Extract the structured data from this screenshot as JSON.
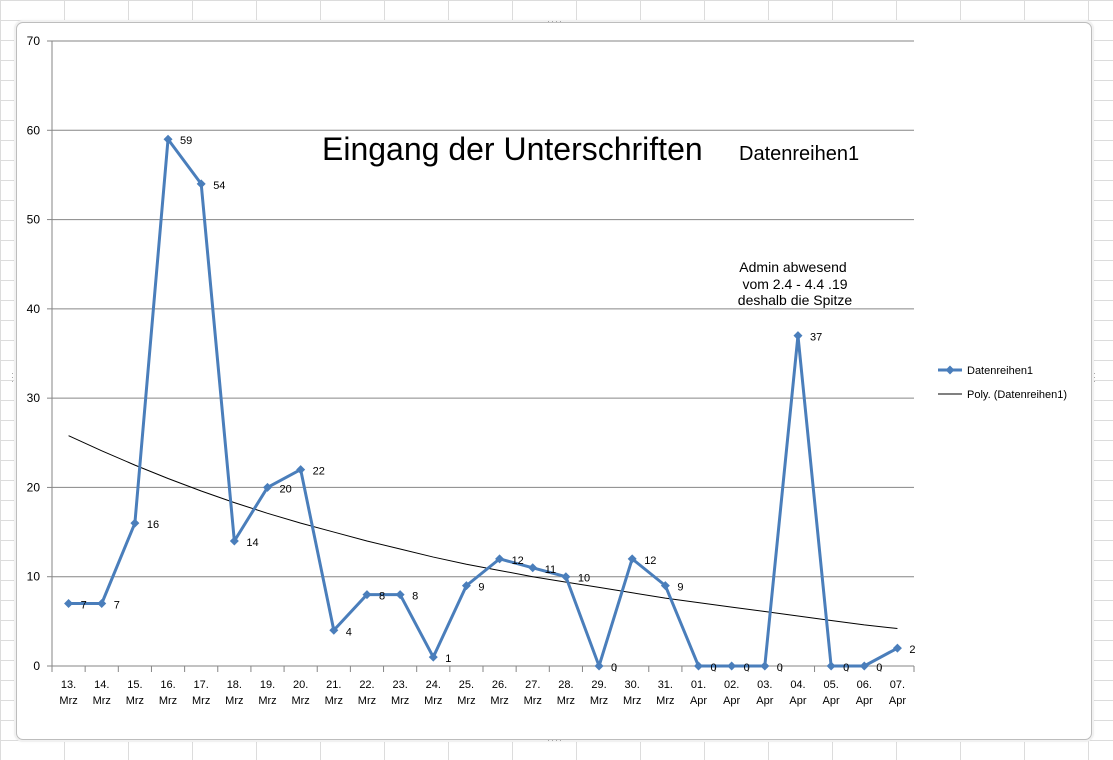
{
  "chart_data": {
    "type": "line",
    "title": "Eingang der Unterschriften",
    "title_series_label": "Datenreihen1",
    "annotation_lines": [
      "Admin abwesend",
      "vom 2.4 - 4.4 .19",
      "deshalb die Spitze"
    ],
    "categories": [
      [
        "13.",
        "Mrz"
      ],
      [
        "14.",
        "Mrz"
      ],
      [
        "15.",
        "Mrz"
      ],
      [
        "16.",
        "Mrz"
      ],
      [
        "17.",
        "Mrz"
      ],
      [
        "18.",
        "Mrz"
      ],
      [
        "19.",
        "Mrz"
      ],
      [
        "20.",
        "Mrz"
      ],
      [
        "21.",
        "Mrz"
      ],
      [
        "22.",
        "Mrz"
      ],
      [
        "23.",
        "Mrz"
      ],
      [
        "24.",
        "Mrz"
      ],
      [
        "25.",
        "Mrz"
      ],
      [
        "26.",
        "Mrz"
      ],
      [
        "27.",
        "Mrz"
      ],
      [
        "28.",
        "Mrz"
      ],
      [
        "29.",
        "Mrz"
      ],
      [
        "30.",
        "Mrz"
      ],
      [
        "31.",
        "Mrz"
      ],
      [
        "01.",
        "Apr"
      ],
      [
        "02.",
        "Apr"
      ],
      [
        "03.",
        "Apr"
      ],
      [
        "04.",
        "Apr"
      ],
      [
        "05.",
        "Apr"
      ],
      [
        "06.",
        "Apr"
      ],
      [
        "07.",
        "Apr"
      ]
    ],
    "series": [
      {
        "name": "Datenreihen1",
        "color": "#4a7ebb",
        "values": [
          7,
          7,
          16,
          59,
          54,
          14,
          20,
          22,
          4,
          8,
          8,
          1,
          9,
          12,
          11,
          10,
          0,
          12,
          9,
          0,
          0,
          0,
          37,
          0,
          0,
          2
        ]
      }
    ],
    "trendline": {
      "name": "Poly. (Datenreihen1)",
      "color": "#000000",
      "values": [
        25.8,
        24.1,
        22.5,
        21.0,
        19.6,
        18.3,
        17.1,
        16.0,
        15.0,
        14.0,
        13.1,
        12.2,
        11.4,
        10.7,
        10.0,
        9.4,
        8.8,
        8.2,
        7.6,
        7.1,
        6.6,
        6.1,
        5.6,
        5.1,
        4.6,
        4.2
      ]
    },
    "yaxis": {
      "min": 0,
      "max": 70,
      "ticks": [
        0,
        10,
        20,
        30,
        40,
        50,
        60,
        70
      ]
    },
    "grid": true,
    "legend_position": "right"
  }
}
